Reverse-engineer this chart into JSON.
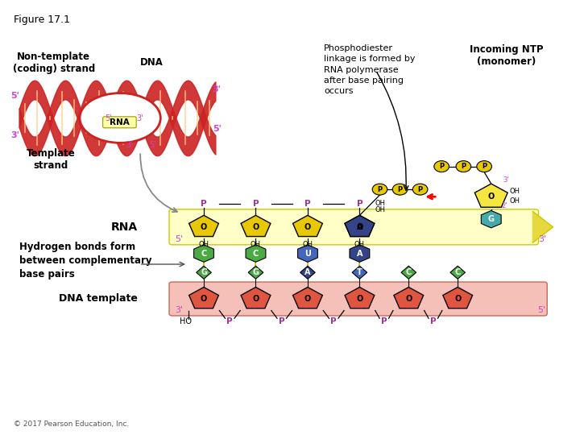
{
  "figure_label": "Figure 17.1",
  "copyright": "© 2017 Pearson Education, Inc.",
  "bg_color": "#ffffff",
  "labels": {
    "non_template": "Non-template\n(coding) strand",
    "dna": "DNA",
    "rna_label": "RNA",
    "template_strand": "Template\nstrand",
    "rna_strand": "RNA",
    "dna_template": "DNA template",
    "hydrogen_bonds": "Hydrogen bonds form\nbetween complementary\nbase pairs",
    "phosphodiester": "Phosphodiester\nlinkage is formed by\nRNA polymerase\nafter base pairing\noccurs",
    "incoming_ntp": "Incoming NTP\n(monomer)"
  },
  "colors": {
    "dna_helix": "#cc2222",
    "rna_sugar": "#e8c800",
    "dna_sugar": "#e05540",
    "base_green": "#4aaa44",
    "base_blue": "#4466bb",
    "base_darkblue": "#334488",
    "base_yellow": "#ddcc00",
    "base_teal": "#44aaaa",
    "phosphate": "#993399",
    "prime_color": "#cc44cc",
    "arrow_color": "#dd8800",
    "text_black": "#000000"
  },
  "rna_bases": [
    "C",
    "C",
    "U",
    "A"
  ],
  "dna_bases": [
    "G",
    "G",
    "A",
    "T",
    "C",
    "C"
  ],
  "base_colors_rna": [
    "#4aaa44",
    "#4aaa44",
    "#4466bb",
    "#334488"
  ],
  "base_colors_dna": [
    "#4aaa44",
    "#4aaa44",
    "#334488",
    "#4466bb",
    "#4aaa44",
    "#4aaa44"
  ]
}
